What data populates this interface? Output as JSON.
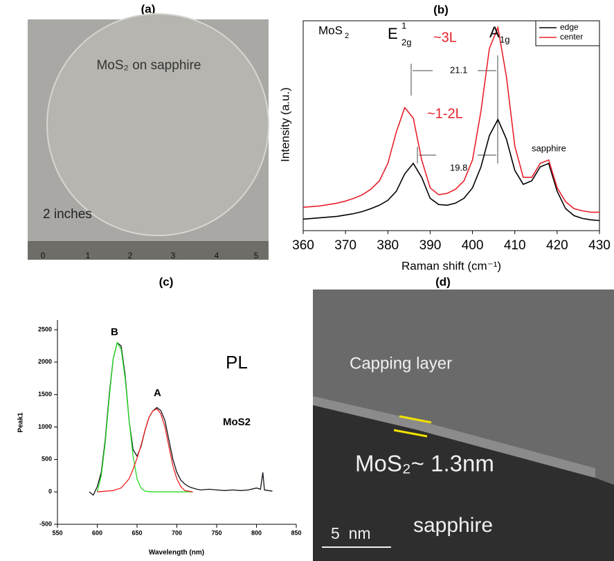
{
  "panels": {
    "a": {
      "label": "(a)",
      "caption": "MoS₂ on sapphire",
      "size": "2 inches",
      "ruler": [
        "0",
        "1",
        "2",
        "3",
        "4",
        "5"
      ]
    },
    "d": {
      "label": "(d)",
      "capping": "Capping layer",
      "layer": "MoS₂~ 1.3nm",
      "substrate": "sapphire",
      "scale": "5  nm"
    }
  },
  "chart_data": [
    {
      "type": "line",
      "title": "(b)",
      "x_label": "Raman shift (cm⁻¹)",
      "y_label": "Intensity (a.u.)",
      "xlim": [
        360,
        430
      ],
      "xticks": [
        360,
        370,
        380,
        390,
        400,
        410,
        420,
        430
      ],
      "legend": "top-right",
      "annotations": [
        "MoS",
        "2",
        "E",
        "1",
        "2g",
        "A",
        "1g",
        "~3L",
        "~1-2L",
        "21.1",
        "19.8",
        "sapphire"
      ],
      "x": [
        360,
        362,
        364,
        366,
        368,
        370,
        372,
        374,
        376,
        378,
        380,
        382,
        384,
        386,
        388,
        390,
        392,
        394,
        396,
        398,
        400,
        402,
        404,
        406,
        408,
        410,
        412,
        414,
        416,
        418,
        420,
        422,
        424,
        426,
        428,
        430
      ],
      "series": [
        {
          "name": "edge",
          "color": "#000000",
          "values": [
            15,
            16,
            17,
            18,
            19,
            21,
            23,
            26,
            30,
            35,
            42,
            55,
            80,
            95,
            75,
            45,
            36,
            35,
            38,
            45,
            60,
            90,
            135,
            158,
            130,
            85,
            65,
            70,
            90,
            95,
            55,
            30,
            20,
            16,
            14,
            13
          ]
        },
        {
          "name": "center",
          "color": "#e8202a",
          "values": [
            32,
            33,
            34,
            36,
            38,
            41,
            45,
            50,
            58,
            70,
            95,
            140,
            175,
            160,
            100,
            60,
            50,
            52,
            58,
            70,
            100,
            170,
            260,
            290,
            220,
            120,
            75,
            75,
            95,
            100,
            60,
            40,
            30,
            27,
            25,
            25
          ]
        }
      ]
    },
    {
      "type": "line",
      "title": "(c)",
      "x_label": "Wavelength (nm)",
      "y_label": "Peak1",
      "xlim": [
        550,
        850
      ],
      "xticks": [
        550,
        600,
        650,
        700,
        750,
        800,
        850
      ],
      "ylim": [
        -500,
        2650
      ],
      "yticks": [
        -500,
        0,
        500,
        1000,
        1500,
        2000,
        2500
      ],
      "annotations": [
        "B",
        "A",
        "PL",
        "MoS2"
      ],
      "series": [
        {
          "color": "#101018",
          "x": [
            590,
            595,
            600,
            605,
            610,
            615,
            620,
            625,
            630,
            635,
            640,
            645,
            650,
            655,
            660,
            665,
            670,
            675,
            680,
            685,
            690,
            695,
            700,
            705,
            710,
            715,
            720,
            725,
            730,
            740,
            750,
            760,
            770,
            780,
            790,
            800,
            805,
            808,
            810,
            815,
            820
          ],
          "values": [
            0,
            -50,
            80,
            300,
            800,
            1500,
            2050,
            2300,
            2250,
            1800,
            1100,
            650,
            550,
            700,
            950,
            1150,
            1250,
            1300,
            1250,
            1100,
            800,
            500,
            300,
            180,
            120,
            80,
            60,
            40,
            30,
            40,
            30,
            20,
            30,
            20,
            30,
            60,
            40,
            300,
            30,
            20,
            10
          ]
        },
        {
          "color": "#22dd22",
          "x": [
            600,
            605,
            610,
            615,
            620,
            625,
            630,
            635,
            640,
            645,
            650,
            655,
            660,
            670,
            700,
            720
          ],
          "values": [
            0,
            250,
            750,
            1450,
            2050,
            2300,
            2200,
            1750,
            1100,
            550,
            200,
            60,
            10,
            0,
            0,
            0
          ]
        },
        {
          "color": "#ee2222",
          "x": [
            600,
            620,
            630,
            640,
            645,
            650,
            655,
            660,
            665,
            670,
            675,
            680,
            685,
            690,
            695,
            700,
            705,
            710,
            720
          ],
          "values": [
            0,
            20,
            60,
            200,
            350,
            520,
            720,
            950,
            1150,
            1250,
            1280,
            1200,
            1000,
            700,
            400,
            200,
            80,
            20,
            0
          ]
        }
      ]
    }
  ]
}
